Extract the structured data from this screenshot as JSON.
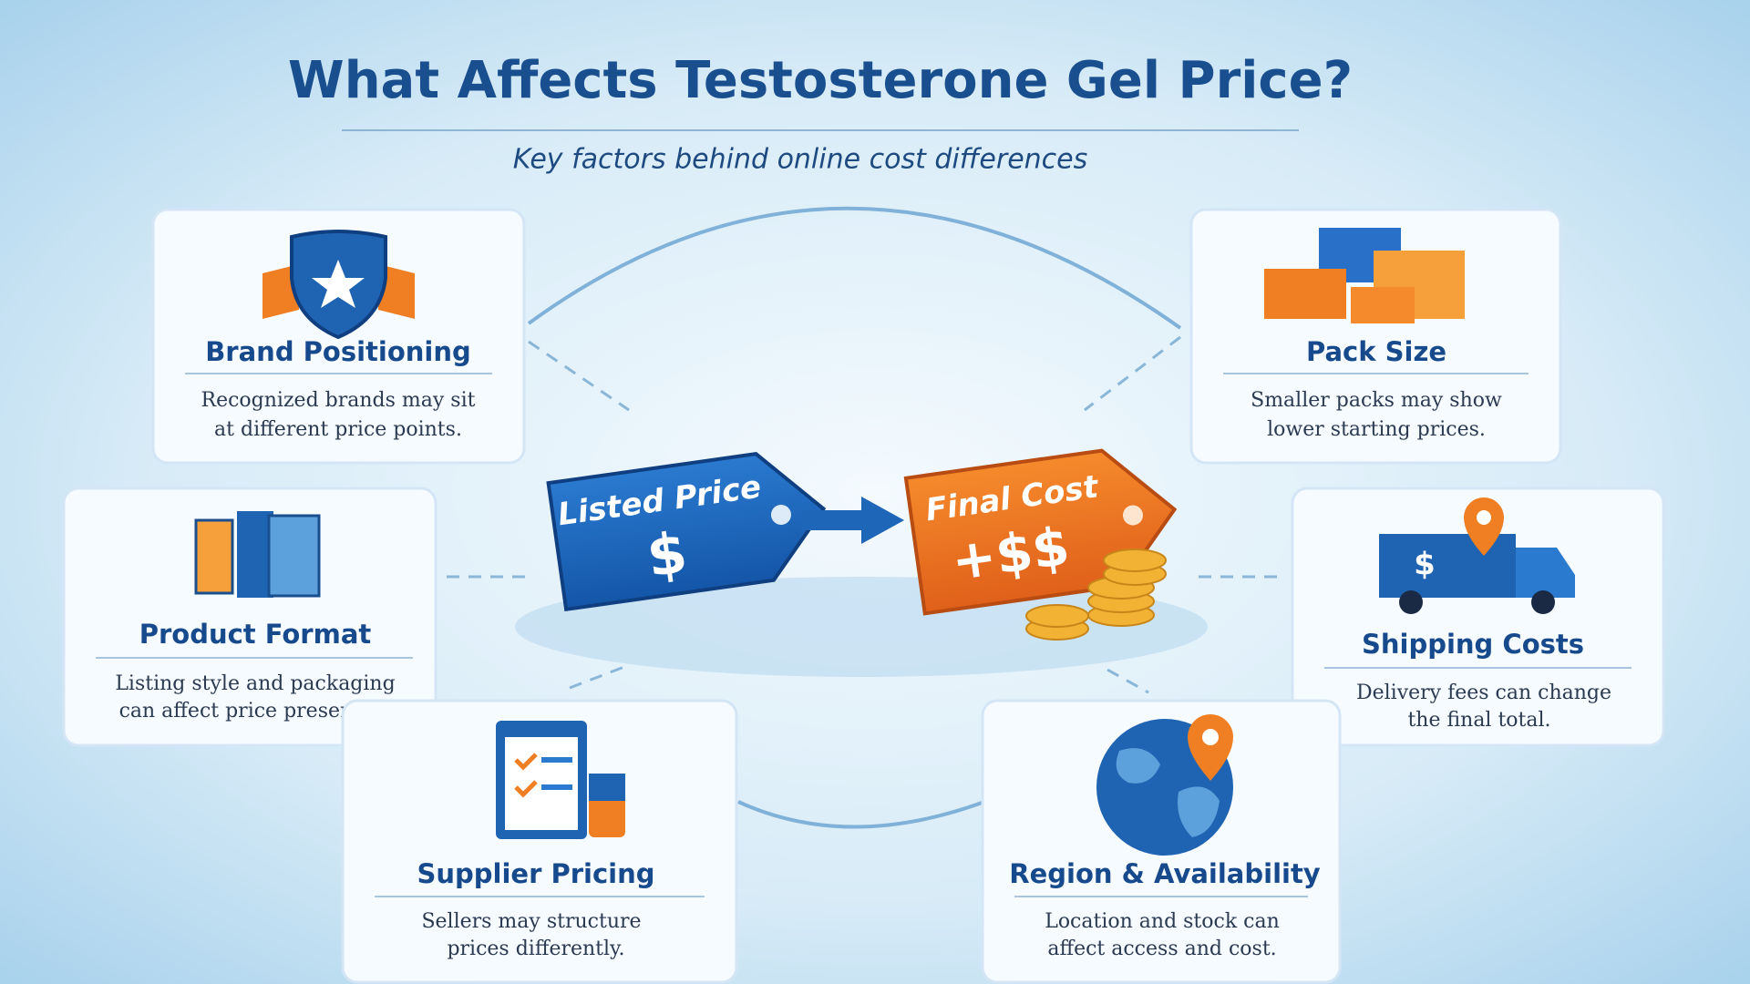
{
  "header": {
    "title": "What Affects Testosterone Gel Price?",
    "subtitle": "Key factors behind online cost differences"
  },
  "center": {
    "listed_label": "Listed Price",
    "listed_symbol": "$",
    "final_label": "Final Cost",
    "final_symbol": "+$$"
  },
  "cards": [
    {
      "title": "Brand Positioning",
      "lines": [
        "Recognized brands may sit",
        "at different price points."
      ]
    },
    {
      "title": "Pack Size",
      "lines": [
        "Smaller packs may show",
        "lower starting prices."
      ]
    },
    {
      "title": "Product Format",
      "lines": [
        "Listing style and packaging",
        "can affect price presentation."
      ]
    },
    {
      "title": "Shipping Costs",
      "lines": [
        "Delivery fees can change",
        "the final total."
      ]
    },
    {
      "title": "Supplier Pricing",
      "lines": [
        "Sellers may structure",
        "prices differently."
      ]
    },
    {
      "title": "Region & Availability",
      "lines": [
        "Location and stock can",
        "affect access and cost."
      ]
    }
  ]
}
